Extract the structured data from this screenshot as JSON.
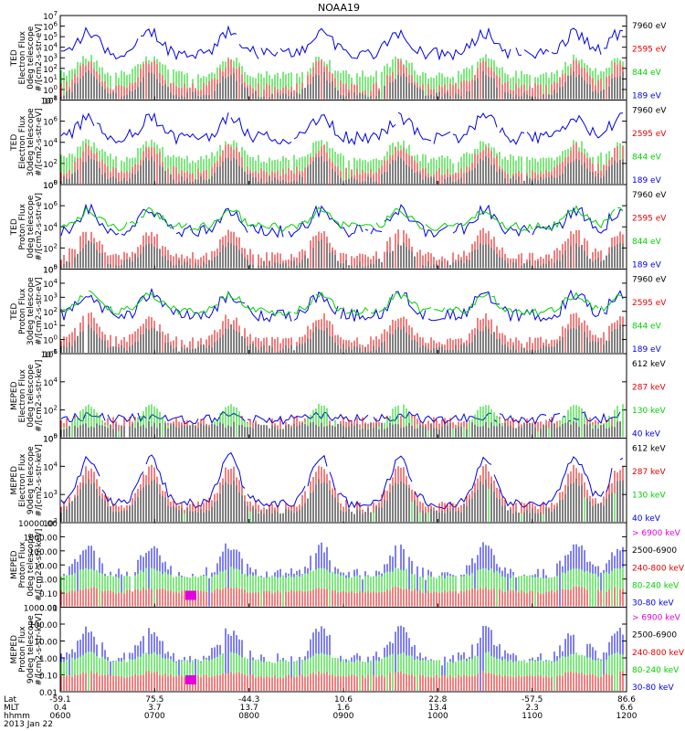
{
  "title": "NOAA19",
  "colors": {
    "black": "#000000",
    "red": "#e00000",
    "green": "#00d000",
    "blue": "#0000e6",
    "magenta": "#e000e0"
  },
  "chart_data": {
    "type": "line",
    "title": "NOAA19",
    "date_label": "2013 Jan 22",
    "x_rows": [
      {
        "label": "Lat",
        "ticks": [
          "-59.1",
          "75.5",
          "-44.3",
          "10.6",
          "22.8",
          "-57.5",
          "86.6"
        ]
      },
      {
        "label": "MLT",
        "ticks": [
          "0.4",
          "3.7",
          "13.7",
          "1.6",
          "13.4",
          "2.3",
          "6.6"
        ]
      },
      {
        "label": "hhmm",
        "ticks": [
          "0600",
          "0700",
          "0800",
          "0900",
          "1000",
          "1100",
          "1200"
        ]
      }
    ],
    "xlim": [
      "0600",
      "1200"
    ],
    "panels": [
      {
        "ylabel": [
          "TED",
          "Electron Flux",
          "0deg telescope",
          "#/[cm2-s-str-eV]"
        ],
        "scale": "log",
        "ylim": [
          0.1,
          10000000.0
        ],
        "ticks": [
          {
            "base": "10",
            "exp": "-1"
          },
          {
            "base": "10",
            "exp": "0"
          },
          {
            "base": "10",
            "exp": "1"
          },
          {
            "base": "10",
            "exp": "2"
          },
          {
            "base": "10",
            "exp": "3"
          },
          {
            "base": "10",
            "exp": "4"
          },
          {
            "base": "10",
            "exp": "5"
          },
          {
            "base": "10",
            "exp": "6"
          },
          {
            "base": "10",
            "exp": "7"
          }
        ],
        "legend": [
          {
            "name": "7960 eV",
            "color": "#000000"
          },
          {
            "name": "2595 eV",
            "color": "#e00000"
          },
          {
            "name": "844 eV",
            "color": "#00d000"
          },
          {
            "name": "189 eV",
            "color": "#0000e6"
          }
        ]
      },
      {
        "ylabel": [
          "TED",
          "Electron Flux",
          "30deg telescope",
          "#/[cm2-s-str-eV]"
        ],
        "scale": "log",
        "ylim": [
          1,
          100000000.0
        ],
        "ticks": [
          {
            "base": "10",
            "exp": "0"
          },
          {
            "base": "10",
            "exp": "2"
          },
          {
            "base": "10",
            "exp": "4"
          },
          {
            "base": "10",
            "exp": "6"
          },
          {
            "base": "10",
            "exp": "8"
          }
        ],
        "legend": [
          {
            "name": "7960 eV",
            "color": "#000000"
          },
          {
            "name": "2595 eV",
            "color": "#e00000"
          },
          {
            "name": "844 eV",
            "color": "#00d000"
          },
          {
            "name": "189 eV",
            "color": "#0000e6"
          }
        ]
      },
      {
        "ylabel": [
          "TED",
          "Proton Flux",
          "0deg telescope",
          "#/[cm2-s-str-eV]"
        ],
        "scale": "log",
        "ylim": [
          1,
          100000000.0
        ],
        "ticks": [
          {
            "base": "10",
            "exp": "0"
          },
          {
            "base": "10",
            "exp": "2"
          },
          {
            "base": "10",
            "exp": "4"
          },
          {
            "base": "10",
            "exp": "6"
          },
          {
            "base": "10",
            "exp": "8"
          }
        ],
        "legend": [
          {
            "name": "7960 eV",
            "color": "#000000"
          },
          {
            "name": "2595 eV",
            "color": "#e00000"
          },
          {
            "name": "844 eV",
            "color": "#00d000"
          },
          {
            "name": "189 eV",
            "color": "#0000e6"
          }
        ]
      },
      {
        "ylabel": [
          "TED",
          "Proton Flux",
          "30deg telescope",
          "#/[cm2-s-str-eV]"
        ],
        "scale": "log",
        "ylim": [
          0.1,
          100000.0
        ],
        "ticks": [
          {
            "base": "10",
            "exp": "-1"
          },
          {
            "base": "10",
            "exp": "0"
          },
          {
            "base": "10",
            "exp": "1"
          },
          {
            "base": "10",
            "exp": "2"
          },
          {
            "base": "10",
            "exp": "3"
          },
          {
            "base": "10",
            "exp": "4"
          },
          {
            "base": "10",
            "exp": "5"
          }
        ],
        "legend": [
          {
            "name": "7960 eV",
            "color": "#000000"
          },
          {
            "name": "2595 eV",
            "color": "#e00000"
          },
          {
            "name": "844 eV",
            "color": "#00d000"
          },
          {
            "name": "189 eV",
            "color": "#0000e6"
          }
        ]
      },
      {
        "ylabel": [
          "MEPED",
          "Electron Flux",
          "0deg telescope",
          "#/[cm2-s-str-keV]"
        ],
        "scale": "log",
        "ylim": [
          1,
          1000000.0
        ],
        "ticks": [
          {
            "base": "10",
            "exp": "0"
          },
          {
            "base": "10",
            "exp": "2"
          },
          {
            "base": "10",
            "exp": "4"
          },
          {
            "base": "10",
            "exp": "6"
          }
        ],
        "legend": [
          {
            "name": "612 keV",
            "color": "#000000"
          },
          {
            "name": "287 keV",
            "color": "#e00000"
          },
          {
            "name": "130 keV",
            "color": "#00d000"
          },
          {
            "name": "40 keV",
            "color": "#0000e6"
          }
        ]
      },
      {
        "ylabel": [
          "MEPED",
          "Electron Flux",
          "90deg telescope",
          "#/[cm2-s-str-keV]"
        ],
        "scale": "log",
        "ylim": [
          10,
          1000000.0
        ],
        "ticks": [
          {
            "base": "10",
            "exp": "2"
          },
          {
            "base": "10",
            "exp": "3"
          },
          {
            "base": "10",
            "exp": "4"
          },
          {
            "base": "10",
            "exp": "5"
          }
        ],
        "legend": [
          {
            "name": "612 keV",
            "color": "#000000"
          },
          {
            "name": "287 keV",
            "color": "#e00000"
          },
          {
            "name": "130 keV",
            "color": "#00d000"
          },
          {
            "name": "40 keV",
            "color": "#0000e6"
          }
        ]
      },
      {
        "ylabel": [
          "MEPED",
          "Proton Flux",
          "0deg telescope",
          "#/[cm2-s-str-keV]"
        ],
        "scale": "log",
        "ylim": [
          0.01,
          10000
        ],
        "ticks": [
          {
            "base": "0.01"
          },
          {
            "base": "0.10"
          },
          {
            "base": "1.00"
          },
          {
            "base": "10.00"
          },
          {
            "base": "100.00"
          },
          {
            "base": "1000.00"
          },
          {
            "base": "10000.00"
          }
        ],
        "legend": [
          {
            "name": "> 6900 keV",
            "color": "#e000e0"
          },
          {
            "name": "2500-6900",
            "color": "#000000"
          },
          {
            "name": "240-800 keV",
            "color": "#e00000"
          },
          {
            "name": "80-240 keV",
            "color": "#00d000"
          },
          {
            "name": "30-80 keV",
            "color": "#0000e6"
          }
        ]
      },
      {
        "ylabel": [
          "MEPED",
          "Proton Flux",
          "90deg telescope",
          "#/[cm2-s-str-keV]"
        ],
        "scale": "log",
        "ylim": [
          0.01,
          1000
        ],
        "ticks": [
          {
            "base": "0.01"
          },
          {
            "base": "0.10"
          },
          {
            "base": "1.00"
          },
          {
            "base": "10.00"
          },
          {
            "base": "100.00"
          },
          {
            "base": "1000.00"
          }
        ],
        "legend": [
          {
            "name": "> 6900 keV",
            "color": "#e000e0"
          },
          {
            "name": "2500-6900",
            "color": "#000000"
          },
          {
            "name": "240-800 keV",
            "color": "#e00000"
          },
          {
            "name": "80-240 keV",
            "color": "#00d000"
          },
          {
            "name": "30-80 keV",
            "color": "#0000e6"
          }
        ]
      }
    ]
  }
}
